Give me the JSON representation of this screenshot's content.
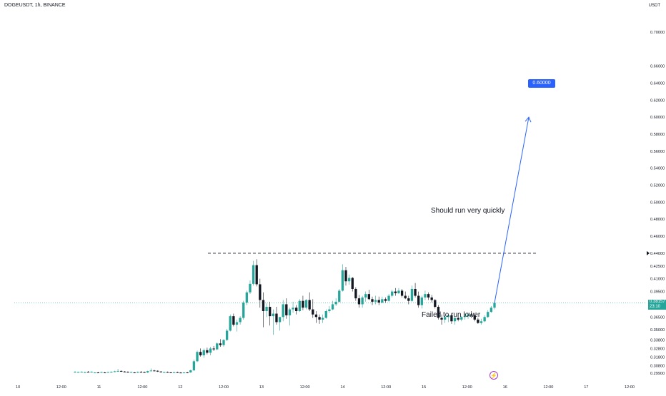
{
  "header": {
    "symbol": "DOGEUSDT, 1h, BINANCE",
    "currency": "USDT"
  },
  "current_price": {
    "value": "0.38157",
    "countdown": "23:10"
  },
  "target": {
    "label": "0.60000"
  },
  "annotations": {
    "top": "Should run very quickly",
    "bottom": "Failed to run lower"
  },
  "price_axis": [
    "0.70000",
    "0.66000",
    "0.64000",
    "0.62000",
    "0.60000",
    "0.58000",
    "0.56000",
    "0.54000",
    "0.52000",
    "0.50000",
    "0.48000",
    "0.46000",
    "0.44000",
    "0.42500",
    "0.41000",
    "0.39500",
    "0.38000",
    "0.36500",
    "0.35000",
    "0.33800",
    "0.32800",
    "0.31800",
    "0.30800",
    "0.29900"
  ],
  "time_axis": [
    "10",
    "12:00",
    "11",
    "12:00",
    "12",
    "12:00",
    "13",
    "12:00",
    "14",
    "12:00",
    "15",
    "12:00",
    "16",
    "12:00",
    "17",
    "12:00"
  ],
  "colors": {
    "up": "#26a69a",
    "down": "#131722",
    "target_line": "#2962ff",
    "badge": "#2962ff",
    "price_tag": "#26a69a"
  },
  "icons": {
    "event_marker": "lightning-bolt-icon"
  },
  "chart_data": {
    "type": "candlestick",
    "title": "DOGEUSDT, 1h, BINANCE",
    "ylim": [
      0.296,
      0.72
    ],
    "resistance_level": 0.44,
    "projection": {
      "from": 0.38157,
      "to": 0.6
    },
    "candles": [
      [
        0.3005,
        0.3015,
        0.2995,
        0.3005
      ],
      [
        0.3002,
        0.3008,
        0.2996,
        0.3004
      ],
      [
        0.3004,
        0.3012,
        0.2998,
        0.3006
      ],
      [
        0.2998,
        0.3008,
        0.2992,
        0.3002
      ],
      [
        0.3006,
        0.3015,
        0.2998,
        0.3003
      ],
      [
        0.3003,
        0.3012,
        0.2995,
        0.3007
      ],
      [
        0.2996,
        0.3002,
        0.299,
        0.2998
      ],
      [
        0.2998,
        0.3004,
        0.2992,
        0.2996
      ],
      [
        0.2999,
        0.3009,
        0.2993,
        0.3003
      ],
      [
        0.2998,
        0.3004,
        0.2991,
        0.2997
      ],
      [
        0.3,
        0.3006,
        0.2994,
        0.3003
      ],
      [
        0.3003,
        0.3012,
        0.2995,
        0.3005
      ],
      [
        0.3008,
        0.3018,
        0.3,
        0.3012
      ],
      [
        0.3012,
        0.304,
        0.3008,
        0.3016
      ],
      [
        0.3016,
        0.3022,
        0.3005,
        0.301
      ],
      [
        0.3009,
        0.3015,
        0.3001,
        0.3005
      ],
      [
        0.3005,
        0.3012,
        0.2998,
        0.3
      ],
      [
        0.3002,
        0.3008,
        0.2994,
        0.3004
      ],
      [
        0.2998,
        0.3004,
        0.2992,
        0.2996
      ],
      [
        0.2996,
        0.301,
        0.299,
        0.3005
      ],
      [
        0.3005,
        0.3014,
        0.2998,
        0.3003
      ],
      [
        0.3002,
        0.3009,
        0.2995,
        0.2998
      ],
      [
        0.2998,
        0.3018,
        0.2992,
        0.3014
      ],
      [
        0.3014,
        0.3045,
        0.301,
        0.3021
      ],
      [
        0.3021,
        0.303,
        0.3012,
        0.3018
      ],
      [
        0.3018,
        0.3022,
        0.3005,
        0.3009
      ],
      [
        0.3009,
        0.3014,
        0.2998,
        0.3002
      ],
      [
        0.2999,
        0.3008,
        0.2992,
        0.3003
      ],
      [
        0.3003,
        0.301,
        0.2995,
        0.3001
      ],
      [
        0.2999,
        0.3004,
        0.2992,
        0.2996
      ],
      [
        0.2996,
        0.3006,
        0.299,
        0.3001
      ],
      [
        0.3001,
        0.3008,
        0.2994,
        0.2997
      ],
      [
        0.2997,
        0.3003,
        0.299,
        0.2994
      ],
      [
        0.2994,
        0.3002,
        0.2988,
        0.2998
      ],
      [
        0.2998,
        0.3005,
        0.2991,
        0.2995
      ],
      [
        0.2999,
        0.303,
        0.2995,
        0.3024
      ],
      [
        0.3024,
        0.315,
        0.3015,
        0.313
      ],
      [
        0.313,
        0.3255,
        0.312,
        0.324
      ],
      [
        0.324,
        0.328,
        0.3185,
        0.32
      ],
      [
        0.32,
        0.328,
        0.317,
        0.326
      ],
      [
        0.326,
        0.329,
        0.321,
        0.323
      ],
      [
        0.323,
        0.33,
        0.32,
        0.328
      ],
      [
        0.328,
        0.331,
        0.325,
        0.327
      ],
      [
        0.327,
        0.335,
        0.326,
        0.334
      ],
      [
        0.334,
        0.339,
        0.33,
        0.332
      ],
      [
        0.332,
        0.339,
        0.33,
        0.338
      ],
      [
        0.338,
        0.351,
        0.337,
        0.349
      ],
      [
        0.349,
        0.368,
        0.348,
        0.366
      ],
      [
        0.366,
        0.369,
        0.354,
        0.356
      ],
      [
        0.356,
        0.362,
        0.348,
        0.359
      ],
      [
        0.359,
        0.366,
        0.356,
        0.364
      ],
      [
        0.364,
        0.384,
        0.362,
        0.382
      ],
      [
        0.382,
        0.396,
        0.379,
        0.394
      ],
      [
        0.394,
        0.408,
        0.392,
        0.404
      ],
      [
        0.404,
        0.431,
        0.402,
        0.426
      ],
      [
        0.426,
        0.433,
        0.401,
        0.4035
      ],
      [
        0.4035,
        0.41,
        0.376,
        0.385
      ],
      [
        0.385,
        0.394,
        0.353,
        0.372
      ],
      [
        0.372,
        0.381,
        0.365,
        0.377
      ],
      [
        0.377,
        0.383,
        0.355,
        0.366
      ],
      [
        0.366,
        0.374,
        0.344,
        0.369
      ],
      [
        0.369,
        0.377,
        0.356,
        0.359
      ],
      [
        0.359,
        0.363,
        0.349,
        0.365
      ],
      [
        0.365,
        0.385,
        0.36,
        0.38
      ],
      [
        0.38,
        0.387,
        0.363,
        0.367
      ],
      [
        0.367,
        0.376,
        0.355,
        0.374
      ],
      [
        0.374,
        0.383,
        0.37,
        0.376
      ],
      [
        0.376,
        0.379,
        0.368,
        0.372
      ],
      [
        0.372,
        0.386,
        0.371,
        0.384
      ],
      [
        0.384,
        0.39,
        0.373,
        0.376
      ],
      [
        0.376,
        0.386,
        0.374,
        0.385
      ],
      [
        0.385,
        0.394,
        0.372,
        0.374
      ],
      [
        0.374,
        0.386,
        0.364,
        0.368
      ],
      [
        0.368,
        0.372,
        0.358,
        0.365
      ],
      [
        0.365,
        0.368,
        0.357,
        0.362
      ],
      [
        0.362,
        0.368,
        0.358,
        0.364
      ],
      [
        0.364,
        0.374,
        0.363,
        0.372
      ],
      [
        0.372,
        0.378,
        0.37,
        0.374
      ],
      [
        0.374,
        0.384,
        0.373,
        0.38
      ],
      [
        0.38,
        0.387,
        0.378,
        0.383
      ],
      [
        0.383,
        0.398,
        0.382,
        0.396
      ],
      [
        0.396,
        0.427,
        0.395,
        0.42
      ],
      [
        0.42,
        0.424,
        0.402,
        0.407
      ],
      [
        0.407,
        0.415,
        0.403,
        0.411
      ],
      [
        0.411,
        0.412,
        0.395,
        0.398
      ],
      [
        0.398,
        0.4,
        0.384,
        0.387
      ],
      [
        0.387,
        0.391,
        0.376,
        0.38
      ],
      [
        0.38,
        0.39,
        0.376,
        0.388
      ],
      [
        0.388,
        0.395,
        0.383,
        0.392
      ],
      [
        0.392,
        0.397,
        0.385,
        0.386
      ],
      [
        0.386,
        0.389,
        0.379,
        0.383
      ],
      [
        0.383,
        0.39,
        0.38,
        0.385
      ],
      [
        0.385,
        0.389,
        0.379,
        0.382
      ],
      [
        0.382,
        0.389,
        0.381,
        0.386
      ],
      [
        0.386,
        0.388,
        0.382,
        0.384
      ],
      [
        0.384,
        0.392,
        0.383,
        0.39
      ],
      [
        0.39,
        0.397,
        0.388,
        0.395
      ],
      [
        0.395,
        0.399,
        0.39,
        0.393
      ],
      [
        0.393,
        0.399,
        0.392,
        0.396
      ],
      [
        0.396,
        0.398,
        0.388,
        0.39
      ],
      [
        0.39,
        0.395,
        0.386,
        0.387
      ],
      [
        0.387,
        0.39,
        0.38,
        0.384
      ],
      [
        0.384,
        0.402,
        0.383,
        0.398
      ],
      [
        0.398,
        0.405,
        0.388,
        0.39
      ],
      [
        0.39,
        0.395,
        0.376,
        0.379
      ],
      [
        0.379,
        0.39,
        0.375,
        0.388
      ],
      [
        0.388,
        0.396,
        0.385,
        0.392
      ],
      [
        0.392,
        0.394,
        0.385,
        0.388
      ],
      [
        0.388,
        0.391,
        0.382,
        0.385
      ],
      [
        0.385,
        0.386,
        0.375,
        0.377
      ],
      [
        0.377,
        0.379,
        0.362,
        0.364
      ],
      [
        0.364,
        0.368,
        0.356,
        0.362
      ],
      [
        0.362,
        0.367,
        0.358,
        0.365
      ],
      [
        0.365,
        0.369,
        0.359,
        0.367
      ],
      [
        0.367,
        0.369,
        0.357,
        0.36
      ],
      [
        0.36,
        0.365,
        0.356,
        0.364
      ],
      [
        0.364,
        0.367,
        0.36,
        0.362
      ],
      [
        0.362,
        0.366,
        0.36,
        0.365
      ],
      [
        0.365,
        0.369,
        0.362,
        0.366
      ],
      [
        0.366,
        0.37,
        0.363,
        0.368
      ],
      [
        0.368,
        0.372,
        0.364,
        0.367
      ],
      [
        0.367,
        0.368,
        0.36,
        0.362
      ],
      [
        0.362,
        0.364,
        0.357,
        0.358
      ],
      [
        0.358,
        0.363,
        0.356,
        0.36
      ],
      [
        0.36,
        0.367,
        0.359,
        0.365
      ],
      [
        0.365,
        0.373,
        0.364,
        0.371
      ],
      [
        0.371,
        0.378,
        0.37,
        0.376
      ],
      [
        0.376,
        0.383,
        0.374,
        0.3816
      ]
    ]
  }
}
